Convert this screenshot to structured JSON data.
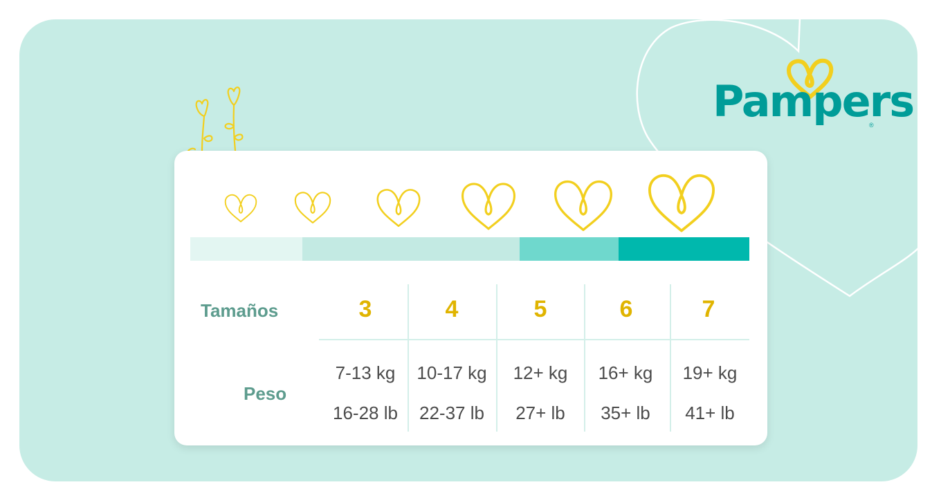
{
  "brand": {
    "name": "Pampers",
    "registered_mark": "®"
  },
  "colors": {
    "background": "#c6ece5",
    "card": "#ffffff",
    "heart_yellow": "#f4d326",
    "number_yellow": "#e0b400",
    "label_teal": "#5d9c8e",
    "logo_teal": "#009c98",
    "bar_segments": [
      "#e3f6f2",
      "#c3eae3",
      "#6fd8cd",
      "#00b8ad"
    ]
  },
  "table": {
    "sizes_label": "Tamaños",
    "weight_label": "Peso",
    "columns": [
      {
        "size": "3",
        "kg": "7-13 kg",
        "lb": "16-28 lb"
      },
      {
        "size": "4",
        "kg": "10-17 kg",
        "lb": "22-37 lb"
      },
      {
        "size": "5",
        "kg": "12+ kg",
        "lb": "27+ lb"
      },
      {
        "size": "6",
        "kg": "16+ kg",
        "lb": "35+ lb"
      },
      {
        "size": "7",
        "kg": "19+ kg",
        "lb": "41+ lb"
      }
    ]
  }
}
